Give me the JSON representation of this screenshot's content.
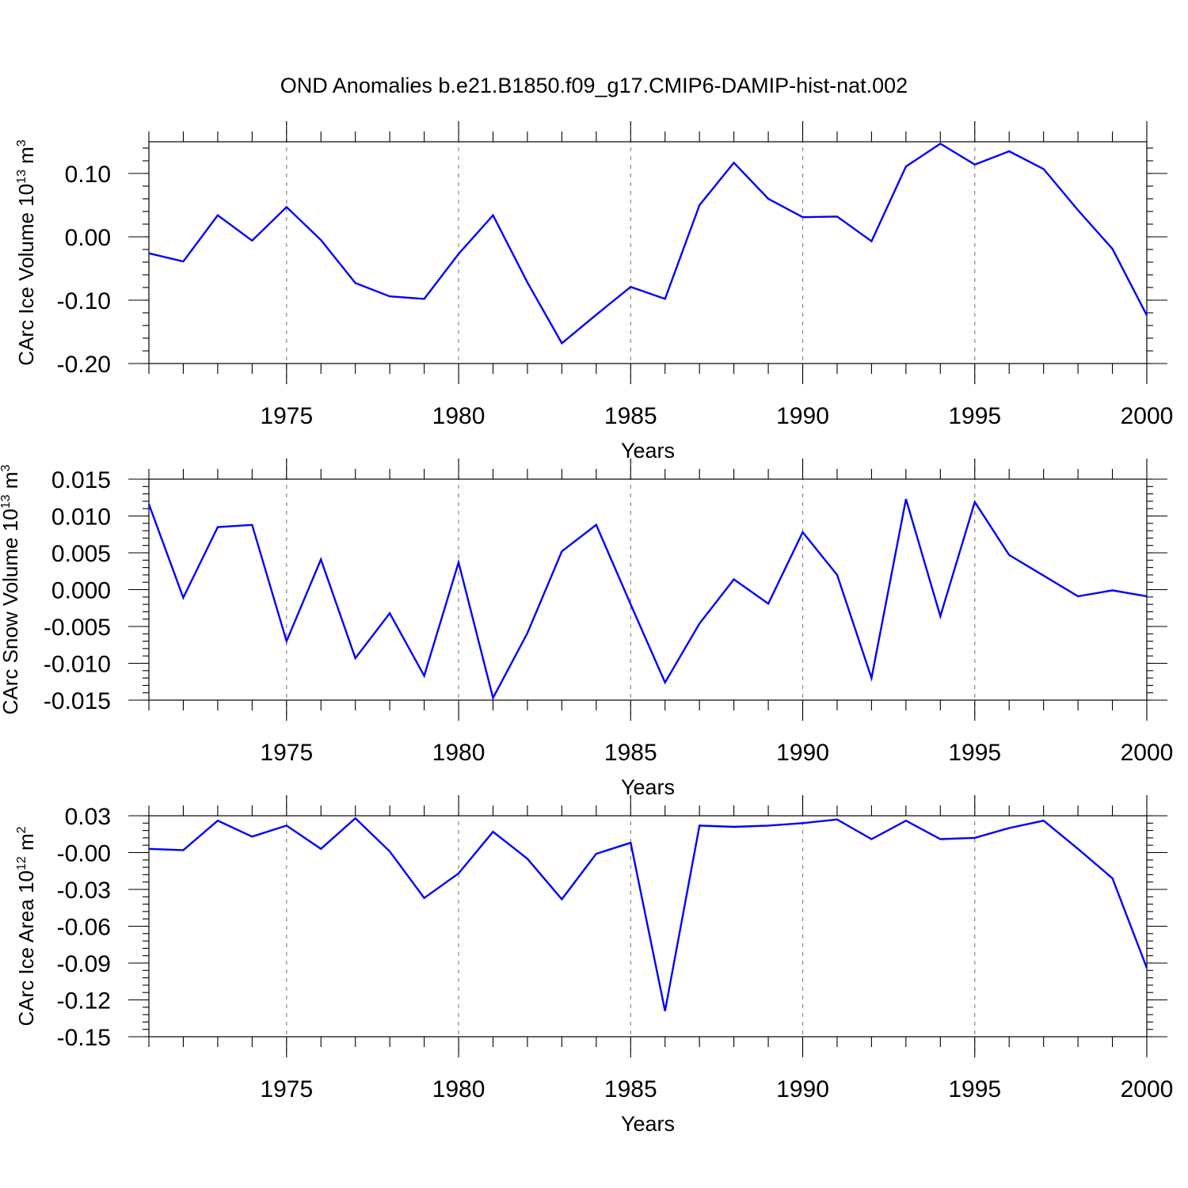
{
  "title": "OND Anomalies b.e21.B1850.f09_g17.CMIP6-DAMIP-hist-nat.002",
  "colors": {
    "line": "#0000ff",
    "axes": "#000000",
    "grid": "#888888"
  },
  "chart_data": [
    {
      "type": "line",
      "id": "ice-volume",
      "ylabel_prefix": "CArc Ice Volume 10",
      "ylabel_exp": "13",
      "ylabel_unit": " m",
      "ylabel_unit_exp": "3",
      "xlabel": "Years",
      "xlim": [
        1971,
        2000
      ],
      "ylim": [
        -0.2,
        0.15
      ],
      "major_yticks": [
        -0.2,
        -0.1,
        0.0,
        0.1
      ],
      "ytick_labels": [
        "-0.20",
        "-0.10",
        "0.00",
        "0.10"
      ],
      "minor_ystep": 0.02,
      "x": [
        1971,
        1972,
        1973,
        1974,
        1975,
        1976,
        1977,
        1978,
        1979,
        1980,
        1981,
        1982,
        1983,
        1984,
        1985,
        1986,
        1987,
        1988,
        1989,
        1990,
        1991,
        1992,
        1993,
        1994,
        1995,
        1996,
        1997,
        1998,
        1999,
        2000
      ],
      "values": [
        -0.026,
        -0.039,
        0.034,
        -0.006,
        0.047,
        -0.005,
        -0.073,
        -0.094,
        -0.098,
        -0.027,
        0.034,
        -0.072,
        -0.168,
        -0.123,
        -0.079,
        -0.098,
        0.05,
        0.117,
        0.06,
        0.031,
        0.032,
        -0.007,
        0.111,
        0.147,
        0.114,
        0.135,
        0.107,
        0.042,
        -0.019,
        -0.124
      ]
    },
    {
      "type": "line",
      "id": "snow-volume",
      "ylabel_prefix": "CArc Snow Volume 10",
      "ylabel_exp": "13",
      "ylabel_unit": " m",
      "ylabel_unit_exp": "3",
      "xlabel": "Years",
      "xlim": [
        1971,
        2000
      ],
      "ylim": [
        -0.015,
        0.015
      ],
      "major_yticks": [
        -0.015,
        -0.01,
        -0.005,
        0.0,
        0.005,
        0.01,
        0.015
      ],
      "ytick_labels": [
        "-0.015",
        "-0.010",
        "-0.005",
        "0.000",
        "0.005",
        "0.010",
        "0.015"
      ],
      "minor_ystep": 0.001,
      "x": [
        1971,
        1972,
        1973,
        1974,
        1975,
        1976,
        1977,
        1978,
        1979,
        1980,
        1981,
        1982,
        1983,
        1984,
        1985,
        1986,
        1987,
        1988,
        1989,
        1990,
        1991,
        1992,
        1993,
        1994,
        1995,
        1996,
        1997,
        1998,
        1999,
        2000
      ],
      "values": [
        0.0116,
        -0.0011,
        0.0085,
        0.0088,
        -0.007,
        0.0041,
        -0.0093,
        -0.0032,
        -0.0117,
        0.0037,
        -0.0147,
        -0.0059,
        0.0052,
        0.0088,
        -0.002,
        -0.0126,
        -0.0046,
        0.0014,
        -0.0019,
        0.0078,
        0.002,
        -0.012,
        0.0123,
        -0.0036,
        0.0119,
        0.0047,
        0.0019,
        -0.0009,
        -0.0001,
        -0.0009
      ]
    },
    {
      "type": "line",
      "id": "ice-area",
      "ylabel_prefix": "CArc Ice Area 10",
      "ylabel_exp": "12",
      "ylabel_unit": " m",
      "ylabel_unit_exp": "2",
      "xlabel": "Years",
      "xlim": [
        1971,
        2000
      ],
      "ylim": [
        -0.15,
        0.03
      ],
      "major_yticks": [
        -0.15,
        -0.12,
        -0.09,
        -0.06,
        -0.03,
        0.0,
        0.03
      ],
      "ytick_labels": [
        "-0.15",
        "-0.12",
        "-0.09",
        "-0.06",
        "-0.03",
        "-0.00",
        "0.03"
      ],
      "minor_ystep": 0.006,
      "x": [
        1971,
        1972,
        1973,
        1974,
        1975,
        1976,
        1977,
        1978,
        1979,
        1980,
        1981,
        1982,
        1983,
        1984,
        1985,
        1986,
        1987,
        1988,
        1989,
        1990,
        1991,
        1992,
        1993,
        1994,
        1995,
        1996,
        1997,
        1998,
        1999,
        2000
      ],
      "values": [
        0.003,
        0.002,
        0.026,
        0.013,
        0.022,
        0.003,
        0.028,
        0.001,
        -0.037,
        -0.017,
        0.017,
        -0.005,
        -0.038,
        -0.001,
        0.008,
        -0.129,
        0.022,
        0.021,
        0.022,
        0.024,
        0.027,
        0.011,
        0.026,
        0.011,
        0.012,
        0.02,
        0.026,
        0.003,
        -0.021,
        -0.094
      ]
    }
  ],
  "xticks": {
    "major": [
      1975,
      1980,
      1985,
      1990,
      1995,
      2000
    ],
    "labels": [
      "1975",
      "1980",
      "1985",
      "1990",
      "1995",
      "2000"
    ],
    "minor_step": 1
  }
}
